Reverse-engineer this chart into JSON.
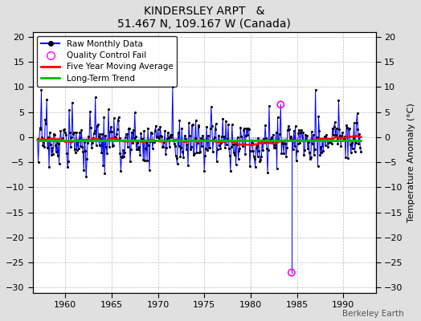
{
  "title": "KINDERSLEY ARPT   &",
  "subtitle": "51.467 N, 109.167 W (Canada)",
  "ylabel": "Temperature Anomaly (°C)",
  "watermark": "Berkeley Earth",
  "xlim": [
    1956.5,
    1993.5
  ],
  "ylim": [
    -31,
    21
  ],
  "yticks": [
    -30,
    -25,
    -20,
    -15,
    -10,
    -5,
    0,
    5,
    10,
    15,
    20
  ],
  "xticks": [
    1960,
    1965,
    1970,
    1975,
    1980,
    1985,
    1990
  ],
  "raw_color": "#0000ff",
  "fill_color": "#aaaaff",
  "ma_color": "#ff0000",
  "trend_color": "#00bb00",
  "qc_color": "#ff00ff",
  "bg_color": "#e0e0e0",
  "plot_bg": "#ffffff",
  "seed": 17,
  "n_months": 420,
  "start_year": 1957.0,
  "qc_year1": 1984.417,
  "qc_value1": -27.0,
  "qc_year2": 1983.25,
  "qc_value2": 6.5
}
